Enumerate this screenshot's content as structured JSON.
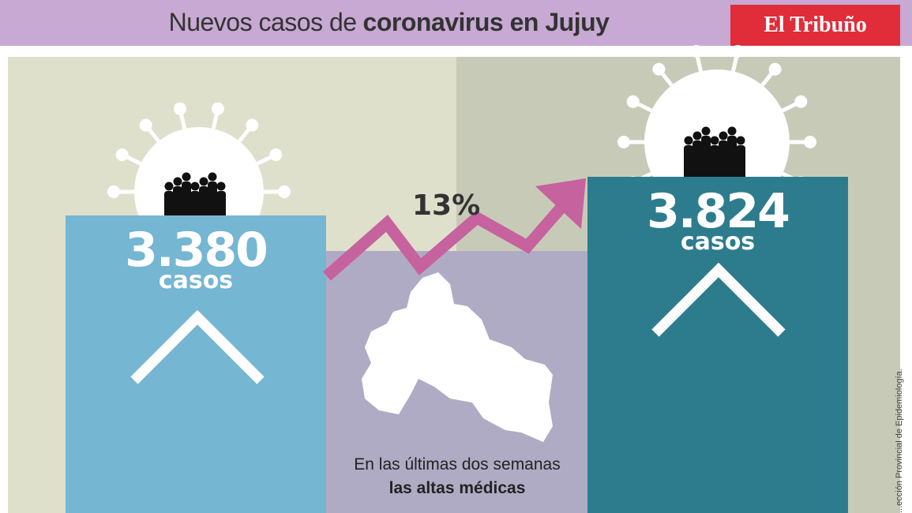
{
  "header": {
    "title_prefix": "Nuevos casos de",
    "title_bold": "coronavirus en Jujuy",
    "brand": "El Tribuño"
  },
  "chart_data": {
    "type": "bar",
    "categories": [
      "",
      ""
    ],
    "values": [
      3380,
      3824
    ],
    "value_labels": [
      "3.380",
      "3.824"
    ],
    "unit_label": "casos",
    "change_label": "13%",
    "colors": [
      "#75b6d2",
      "#2d7c8e"
    ],
    "arrow_color": "#c6629e",
    "ylim": [
      0,
      3824
    ]
  },
  "note": {
    "line1": "En las últimas dos semanas",
    "line2": "las altas médicas"
  },
  "source": "...ección Provincial de Epidemiología."
}
